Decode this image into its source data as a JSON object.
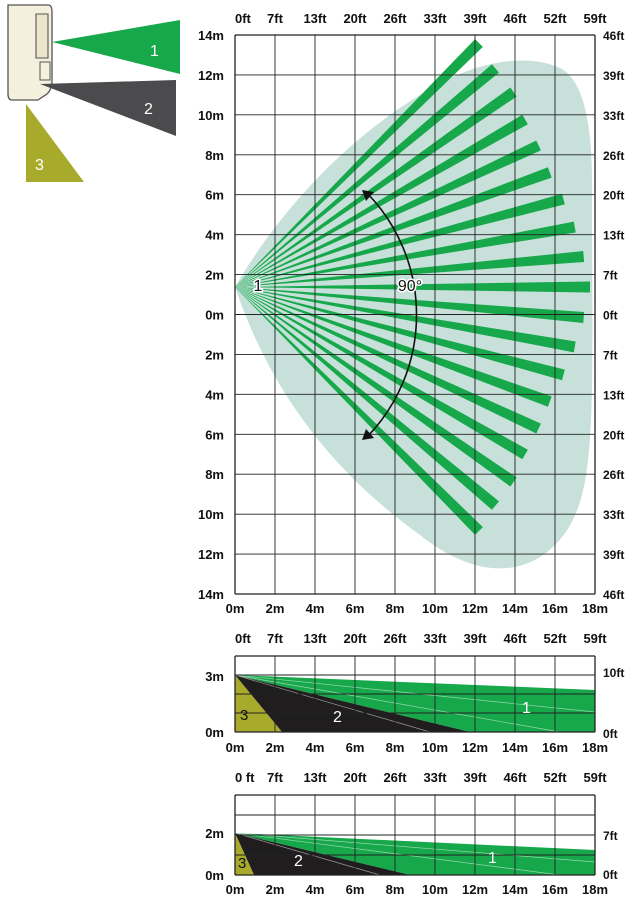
{
  "legend": {
    "zone_labels": [
      "1",
      "2",
      "3"
    ],
    "colors": {
      "zone1": "#16a84a",
      "zone2": "#4b4b4d",
      "zone3": "#a8aa2c"
    }
  },
  "top_view": {
    "x_top_labels": [
      "0ft",
      "7ft",
      "13ft",
      "20ft",
      "26ft",
      "33ft",
      "39ft",
      "46ft",
      "52ft",
      "59ft"
    ],
    "x_bottom_labels": [
      "0m",
      "2m",
      "4m",
      "6m",
      "8m",
      "10m",
      "12m",
      "14m",
      "16m",
      "18m"
    ],
    "y_left_labels": [
      "14m",
      "12m",
      "10m",
      "8m",
      "6m",
      "4m",
      "2m",
      "0m",
      "2m",
      "4m",
      "6m",
      "8m",
      "10m",
      "12m",
      "14m"
    ],
    "y_right_labels": [
      "46ft",
      "39ft",
      "33ft",
      "26ft",
      "20ft",
      "13ft",
      "7ft",
      "0ft",
      "7ft",
      "13ft",
      "20ft",
      "26ft",
      "33ft",
      "39ft",
      "46ft"
    ],
    "origin_label": "1",
    "angle_label": "90°",
    "colors": {
      "beam": "#16a84a",
      "coverage": "#c7e1da",
      "grid": "#222222"
    }
  },
  "side_view_1": {
    "x_top_labels": [
      "0ft",
      "7ft",
      "13ft",
      "20ft",
      "26ft",
      "33ft",
      "39ft",
      "46ft",
      "52ft",
      "59ft"
    ],
    "x_bottom_labels": [
      "0m",
      "2m",
      "4m",
      "6m",
      "8m",
      "10m",
      "12m",
      "14m",
      "16m",
      "18m"
    ],
    "y_left_labels": [
      "3m",
      "0m"
    ],
    "y_right_labels": [
      "10ft",
      "0ft"
    ],
    "zone_labels": [
      "3",
      "2",
      "1"
    ]
  },
  "side_view_2": {
    "x_top_labels": [
      "0 ft",
      "7ft",
      "13ft",
      "20ft",
      "26ft",
      "33ft",
      "39ft",
      "46ft",
      "52ft",
      "59ft"
    ],
    "x_bottom_labels": [
      "0m",
      "2m",
      "4m",
      "6m",
      "8m",
      "10m",
      "12m",
      "14m",
      "16m",
      "18m"
    ],
    "y_left_labels": [
      "2m",
      "0m"
    ],
    "y_right_labels": [
      "7ft",
      "0ft"
    ],
    "zone_labels": [
      "3",
      "2",
      "1"
    ]
  }
}
